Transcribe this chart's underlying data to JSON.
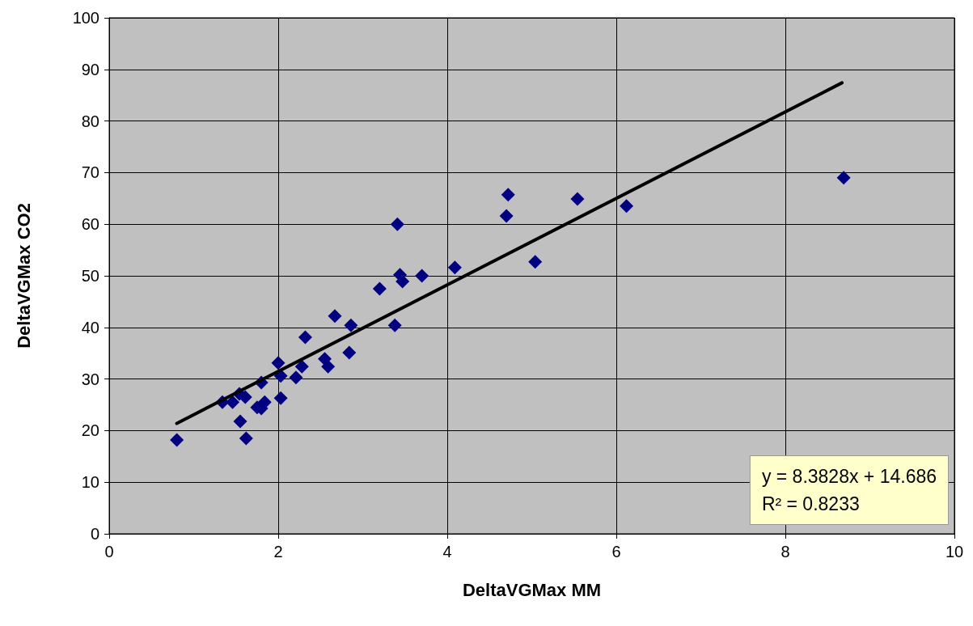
{
  "chart_data": {
    "type": "scatter",
    "xlabel": "DeltaVGMax MM",
    "ylabel": "DeltaVGMax CO2",
    "xlim": [
      0,
      10
    ],
    "xticks": [
      0,
      2,
      4,
      6,
      8,
      10
    ],
    "ylim": [
      0,
      100
    ],
    "yticks": [
      0,
      10,
      20,
      30,
      40,
      50,
      60,
      70,
      80,
      90,
      100
    ],
    "grid": true,
    "series": [
      {
        "marker": "diamond",
        "color": "#000080",
        "x": [
          0.8,
          1.34,
          1.46,
          1.54,
          1.61,
          1.55,
          1.62,
          1.75,
          1.8,
          1.84,
          1.8,
          2.0,
          2.03,
          2.03,
          2.21,
          2.28,
          2.32,
          2.55,
          2.59,
          2.67,
          2.86,
          2.84,
          3.2,
          3.41,
          3.44,
          3.47,
          3.7,
          3.38,
          4.09,
          4.72,
          4.7,
          5.04,
          5.54,
          6.12,
          8.69
        ],
        "values": [
          18.2,
          25.5,
          25.5,
          27.1,
          26.5,
          21.8,
          18.5,
          24.5,
          24.3,
          25.5,
          29.3,
          33.1,
          30.6,
          26.3,
          30.3,
          32.4,
          38.1,
          33.9,
          32.4,
          42.2,
          40.4,
          35.1,
          47.5,
          60.0,
          50.2,
          48.9,
          50.0,
          40.4,
          51.6,
          65.7,
          61.6,
          52.7,
          64.9,
          63.5,
          69.0
        ]
      },
      {
        "type": "line",
        "color": "#000000",
        "x": [
          0.8,
          8.67
        ],
        "values": [
          21.4,
          87.4
        ]
      }
    ],
    "annotations": [
      "y = 8.3828x + 14.686",
      "R² = 0.8233"
    ]
  }
}
